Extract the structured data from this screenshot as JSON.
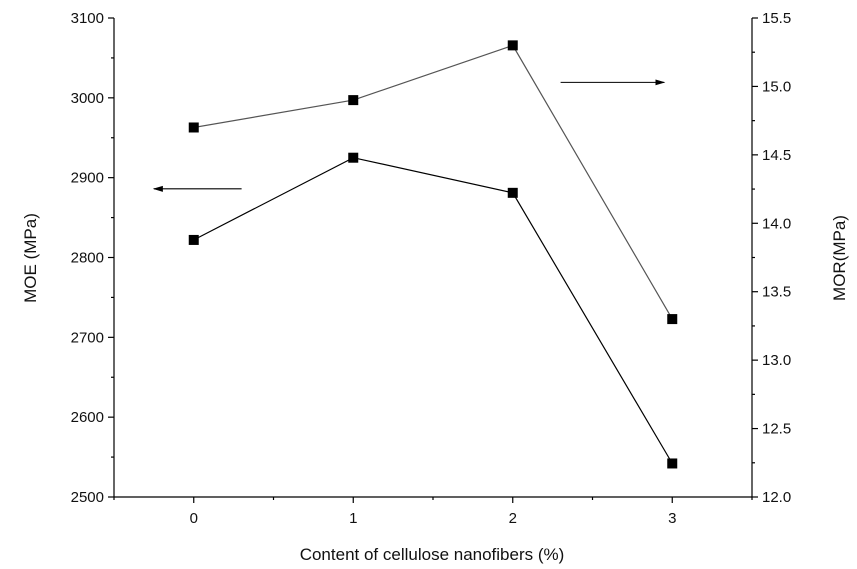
{
  "chart_data": {
    "type": "line",
    "title": "",
    "xlabel": "Content of cellulose nanofibers (%)",
    "ylabel_left": "MOE (MPa)",
    "ylabel_right": "MOR(MPa)",
    "x": [
      0,
      1,
      2,
      3
    ],
    "x_ticks": [
      "0",
      "1",
      "2",
      "3"
    ],
    "xlim": [
      -0.5,
      3.5
    ],
    "ylim_left": [
      2500,
      3100
    ],
    "ylim_right": [
      12.0,
      15.5
    ],
    "yticks_left": [
      "2500",
      "2600",
      "2700",
      "2800",
      "2900",
      "3000",
      "3100"
    ],
    "yticks_right": [
      "12.0",
      "12.5",
      "13.0",
      "13.5",
      "14.0",
      "14.5",
      "15.0",
      "15.5"
    ],
    "grid": false,
    "series": [
      {
        "axis": "left",
        "values": [
          2822,
          2925,
          2881,
          2542
        ],
        "color": "#000000"
      },
      {
        "axis": "right",
        "values": [
          14.7,
          14.9,
          15.3,
          13.3
        ],
        "color": "#555555"
      }
    ],
    "annotations": [
      {
        "type": "arrow",
        "points_to": "left-axis",
        "attached_series": 0
      },
      {
        "type": "arrow",
        "points_to": "right-axis",
        "attached_series": 1
      }
    ]
  }
}
